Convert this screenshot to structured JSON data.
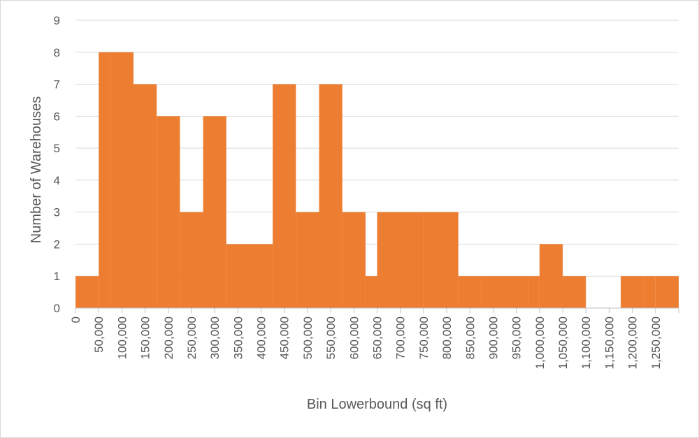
{
  "chart_data": {
    "type": "bar",
    "subtype": "histogram",
    "title": "",
    "xlabel": "Bin Lowerbound (sq ft)",
    "ylabel": "Number of Warehouses",
    "categories": [
      "0",
      "50,000",
      "100,000",
      "150,000",
      "200,000",
      "250,000",
      "300,000",
      "350,000",
      "400,000",
      "450,000",
      "500,000",
      "550,000",
      "600,000",
      "650,000",
      "700,000",
      "750,000",
      "800,000",
      "850,000",
      "900,000",
      "950,000",
      "1,000,000",
      "1,050,000",
      "1,100,000",
      "1,150,000",
      "1,200,000",
      "1,250,000"
    ],
    "bin_width": 25000,
    "x_range": [
      0,
      1300000
    ],
    "bin_counts": [
      1,
      8,
      8,
      7,
      6,
      3,
      6,
      2,
      2,
      7,
      3,
      7,
      3,
      1,
      3,
      3,
      1,
      1,
      1,
      1,
      2,
      1,
      0,
      1,
      1,
      1
    ],
    "bin_starts": [
      0,
      50000,
      75000,
      125000,
      175000,
      225000,
      275000,
      325000,
      375000,
      425000,
      475000,
      525000,
      575000,
      625000,
      650000,
      750000,
      825000,
      875000,
      925000,
      975000,
      1000000,
      1050000,
      1100000,
      1175000,
      1225000,
      1250000
    ],
    "bar_color": "#ED7D31",
    "ylim": [
      0,
      9
    ],
    "yticks": [
      0,
      1,
      2,
      3,
      4,
      5,
      6,
      7,
      8,
      9
    ],
    "grid": true,
    "legend": "none"
  }
}
